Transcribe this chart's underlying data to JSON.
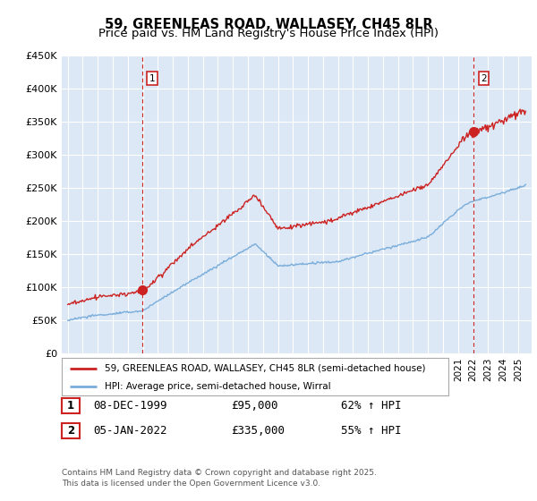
{
  "title": "59, GREENLEAS ROAD, WALLASEY, CH45 8LR",
  "subtitle": "Price paid vs. HM Land Registry's House Price Index (HPI)",
  "ylim": [
    0,
    450000
  ],
  "yticks": [
    0,
    50000,
    100000,
    150000,
    200000,
    250000,
    300000,
    350000,
    400000,
    450000
  ],
  "ytick_labels": [
    "£0",
    "£50K",
    "£100K",
    "£150K",
    "£200K",
    "£250K",
    "£300K",
    "£350K",
    "£400K",
    "£450K"
  ],
  "red_line_color": "#cc2222",
  "blue_line_color": "#7aadda",
  "sale1_x": 1999.94,
  "sale1_price": 95000,
  "sale1_label": "1",
  "sale2_x": 2022.01,
  "sale2_price": 335000,
  "sale2_label": "2",
  "vline_color": "#cc2222",
  "plot_bg_color": "#dce8f5",
  "grid_color": "#ffffff",
  "legend_label_red": "59, GREENLEAS ROAD, WALLASEY, CH45 8LR (semi-detached house)",
  "legend_label_blue": "HPI: Average price, semi-detached house, Wirral",
  "table_rows": [
    {
      "num": "1",
      "date": "08-DEC-1999",
      "price": "£95,000",
      "hpi": "62% ↑ HPI"
    },
    {
      "num": "2",
      "date": "05-JAN-2022",
      "price": "£335,000",
      "hpi": "55% ↑ HPI"
    }
  ],
  "footnote": "Contains HM Land Registry data © Crown copyright and database right 2025.\nThis data is licensed under the Open Government Licence v3.0."
}
